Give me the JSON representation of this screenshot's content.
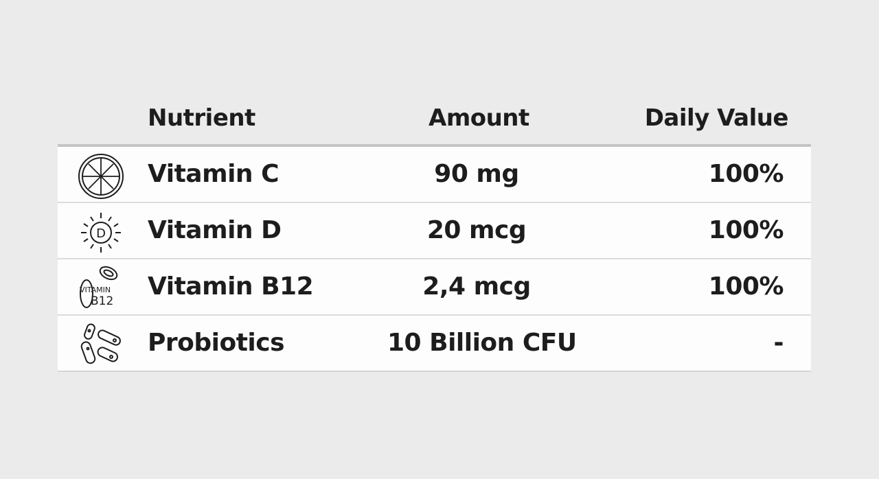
{
  "header": {
    "nutrient": "Nutrient",
    "amount": "Amount",
    "daily_value": "Daily Value"
  },
  "rows": [
    {
      "icon": "citrus-slice-icon",
      "nutrient": "Vitamin C",
      "amount": "90 mg",
      "daily_value": "100%"
    },
    {
      "icon": "sun-vitamin-d-icon",
      "nutrient": "Vitamin D",
      "amount": "20 mcg",
      "daily_value": "100%"
    },
    {
      "icon": "vitamin-b12-icon",
      "icon_text": "VITAMIN B12",
      "nutrient": "Vitamin B12",
      "amount": "2,4 mcg",
      "daily_value": "100%"
    },
    {
      "icon": "bacteria-icon",
      "nutrient": "Probiotics",
      "amount": "10 Billion CFU",
      "daily_value": "-"
    }
  ]
}
